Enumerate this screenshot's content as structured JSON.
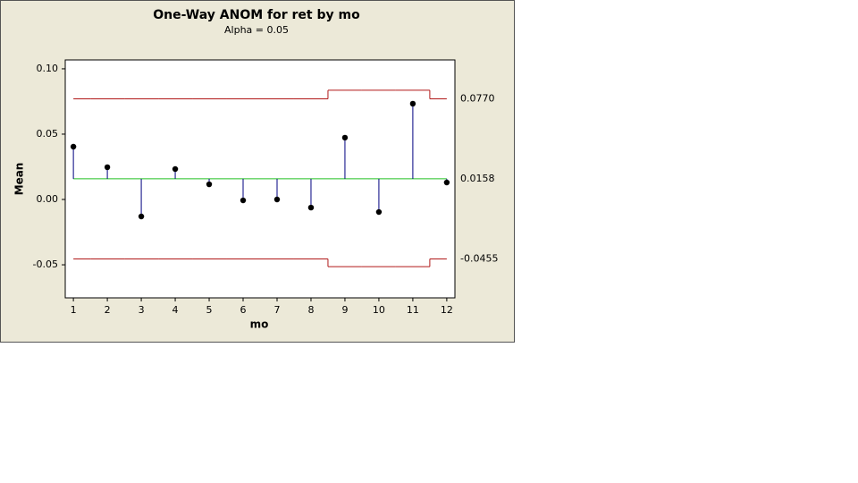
{
  "chart_data": {
    "type": "anom",
    "title": "One-Way ANOM for ret by mo",
    "subtitle": "Alpha = 0.05",
    "x_label": "mo",
    "y_label": "Mean",
    "x": [
      1,
      2,
      3,
      4,
      5,
      6,
      7,
      8,
      9,
      10,
      11,
      12
    ],
    "values": [
      0.0404,
      0.0247,
      -0.013,
      0.0233,
      0.0116,
      -0.0007,
      0.0,
      -0.0062,
      0.0473,
      -0.0096,
      0.0733,
      0.013
    ],
    "upper_limits": [
      0.077,
      0.077,
      0.077,
      0.077,
      0.077,
      0.077,
      0.077,
      0.077,
      0.0836,
      0.0836,
      0.0836,
      0.077
    ],
    "lower_limits": [
      -0.0455,
      -0.0455,
      -0.0455,
      -0.0455,
      -0.0455,
      -0.0455,
      -0.0455,
      -0.0455,
      -0.0514,
      -0.0514,
      -0.0514,
      -0.0455
    ],
    "center_line": {
      "value": 0.0158,
      "label": "0.0158"
    },
    "upper_limit_label": {
      "value": 0.077,
      "label": "0.0770"
    },
    "lower_limit_label": {
      "value": -0.0455,
      "label": "-0.0455"
    },
    "xlim": [
      0.76,
      12.24
    ],
    "ylim": [
      -0.0753,
      0.1068
    ],
    "xticks": [
      1,
      2,
      3,
      4,
      5,
      6,
      7,
      8,
      9,
      10,
      11,
      12
    ],
    "yticks": [
      {
        "value": 0.1,
        "label": "0.10"
      },
      {
        "value": 0.05,
        "label": "0.05"
      },
      {
        "value": 0,
        "label": "0.00"
      },
      {
        "value": -0.05,
        "label": "-0.05"
      }
    ],
    "point_color": "#000000",
    "stem_color": "#000080",
    "center_color": "#22c022",
    "limit_color": "#b01818"
  }
}
